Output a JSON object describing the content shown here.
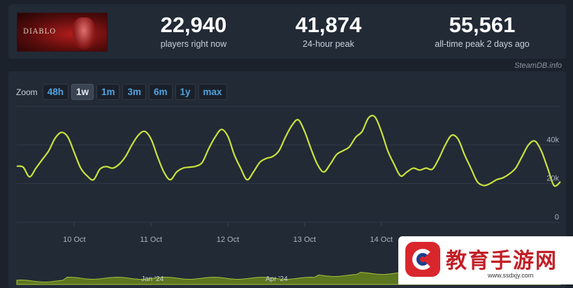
{
  "game": {
    "logo_text": "DIABLO"
  },
  "stats": [
    {
      "value": "22,940",
      "label": "players right now"
    },
    {
      "value": "41,874",
      "label": "24-hour peak"
    },
    {
      "value": "55,561",
      "label": "all-time peak 2 days ago"
    }
  ],
  "credit": "SteamDB.info",
  "zoom": {
    "label": "Zoom",
    "options": [
      "48h",
      "1w",
      "1m",
      "3m",
      "6m",
      "1y",
      "max"
    ],
    "selected": "1w"
  },
  "colors": {
    "line": "#c8e33c",
    "accent": "#4fa3e0",
    "navigator": "#6d8a1c"
  },
  "chart_data": {
    "type": "line",
    "x_tick_labels": [
      "10 Oct",
      "11 Oct",
      "12 Oct",
      "13 Oct",
      "14 Oct"
    ],
    "y_tick_labels": [
      "0",
      "20k",
      "40k"
    ],
    "ylim": [
      0,
      60000
    ],
    "grid": true,
    "series": [
      {
        "x": [
          "2024-10-09 06:00",
          "2024-10-09 08:00",
          "2024-10-09 10:00",
          "2024-10-09 12:00",
          "2024-10-09 14:00",
          "2024-10-09 16:00",
          "2024-10-09 18:00",
          "2024-10-09 20:00",
          "2024-10-09 22:00",
          "2024-10-10 00:00",
          "2024-10-10 02:00",
          "2024-10-10 04:00",
          "2024-10-10 06:00",
          "2024-10-10 08:00",
          "2024-10-10 10:00",
          "2024-10-10 12:00",
          "2024-10-10 14:00",
          "2024-10-10 16:00",
          "2024-10-10 18:00",
          "2024-10-10 20:00",
          "2024-10-10 22:00",
          "2024-10-11 00:00",
          "2024-10-11 02:00",
          "2024-10-11 04:00",
          "2024-10-11 06:00",
          "2024-10-11 08:00",
          "2024-10-11 10:00",
          "2024-10-11 12:00",
          "2024-10-11 14:00",
          "2024-10-11 16:00",
          "2024-10-11 18:00",
          "2024-10-11 20:00",
          "2024-10-11 22:00",
          "2024-10-12 00:00",
          "2024-10-12 02:00",
          "2024-10-12 04:00",
          "2024-10-12 06:00",
          "2024-10-12 08:00",
          "2024-10-12 10:00",
          "2024-10-12 12:00",
          "2024-10-12 14:00",
          "2024-10-12 16:00",
          "2024-10-12 18:00",
          "2024-10-12 20:00",
          "2024-10-12 22:00",
          "2024-10-13 00:00",
          "2024-10-13 02:00",
          "2024-10-13 04:00",
          "2024-10-13 06:00",
          "2024-10-13 08:00",
          "2024-10-13 10:00",
          "2024-10-13 12:00",
          "2024-10-13 14:00",
          "2024-10-13 16:00",
          "2024-10-13 18:00",
          "2024-10-13 20:00",
          "2024-10-13 22:00",
          "2024-10-14 00:00",
          "2024-10-14 02:00",
          "2024-10-14 04:00",
          "2024-10-14 06:00",
          "2024-10-14 08:00",
          "2024-10-14 10:00",
          "2024-10-14 12:00",
          "2024-10-14 14:00",
          "2024-10-14 16:00",
          "2024-10-14 18:00",
          "2024-10-14 20:00",
          "2024-10-14 22:00",
          "2024-10-15 00:00",
          "2024-10-15 02:00",
          "2024-10-15 04:00",
          "2024-10-15 06:00",
          "2024-10-15 08:00",
          "2024-10-15 10:00",
          "2024-10-15 12:00",
          "2024-10-15 14:00",
          "2024-10-15 16:00",
          "2024-10-15 18:00",
          "2024-10-15 20:00",
          "2024-10-15 22:00",
          "2024-10-16 00:00",
          "2024-10-16 02:00",
          "2024-10-16 04:00",
          "2024-10-16 06:00",
          "2024-10-16 08:00"
        ],
        "y": [
          29000,
          28500,
          23500,
          28000,
          32500,
          37000,
          43500,
          46500,
          44000,
          36000,
          28000,
          24000,
          22000,
          27500,
          28800,
          28000,
          30000,
          34000,
          40000,
          45000,
          47000,
          43000,
          34000,
          26000,
          22000,
          26000,
          28000,
          28500,
          29000,
          31000,
          38000,
          44000,
          48000,
          44500,
          35000,
          28000,
          22000,
          26000,
          31000,
          33000,
          34000,
          37000,
          44000,
          50000,
          53000,
          47000,
          38000,
          30000,
          26000,
          30000,
          35000,
          37000,
          39000,
          44000,
          47000,
          54000,
          54500,
          47000,
          37000,
          30000,
          24000,
          26000,
          28000,
          27000,
          28000,
          27500,
          33000,
          40000,
          45000,
          43000,
          35000,
          28000,
          21000,
          19000,
          20000,
          22000,
          23000,
          25000,
          28000,
          34000,
          40000,
          42000,
          37000,
          28000,
          19000,
          21000
        ]
      }
    ]
  }
}
